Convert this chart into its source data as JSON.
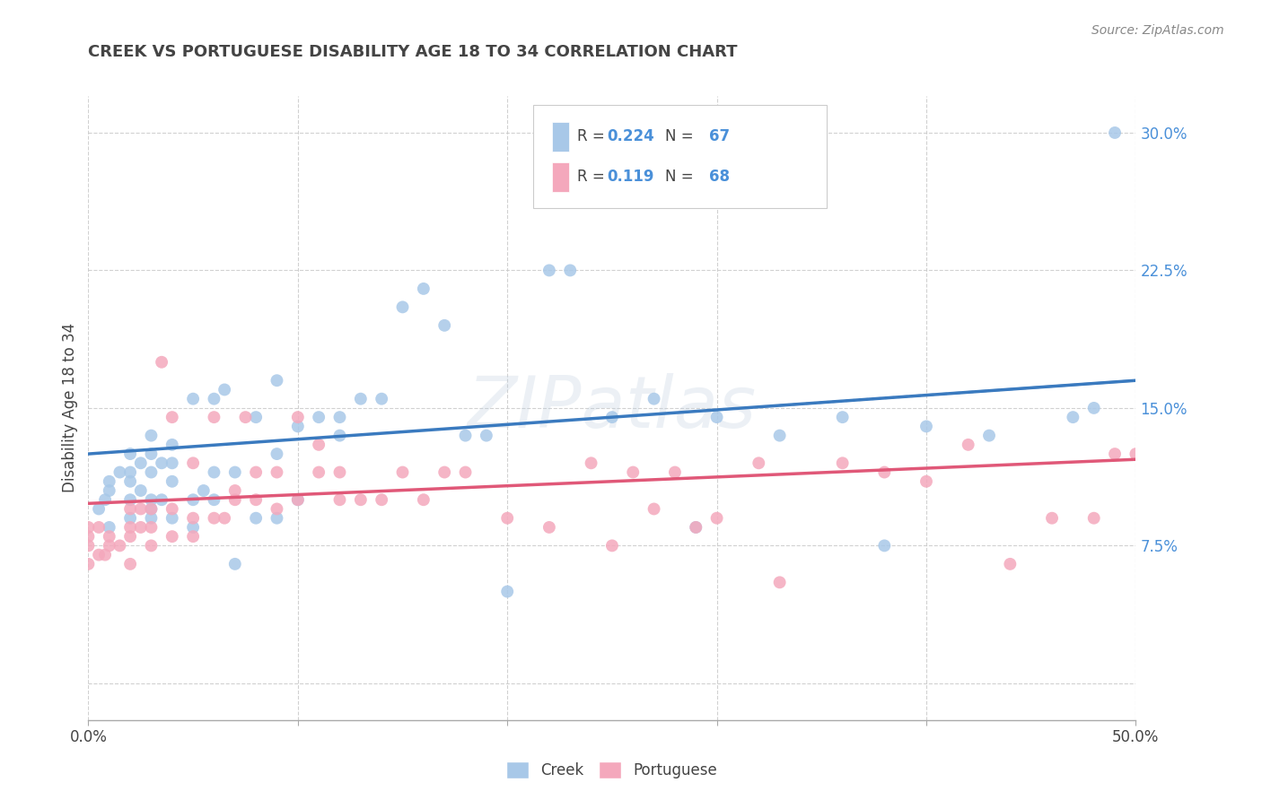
{
  "title": "CREEK VS PORTUGUESE DISABILITY AGE 18 TO 34 CORRELATION CHART",
  "source": "Source: ZipAtlas.com",
  "ylabel": "Disability Age 18 to 34",
  "xlim": [
    0.0,
    0.5
  ],
  "ylim": [
    -0.02,
    0.32
  ],
  "yticks": [
    0.0,
    0.075,
    0.15,
    0.225,
    0.3
  ],
  "ytick_labels": [
    "",
    "7.5%",
    "15.0%",
    "22.5%",
    "30.0%"
  ],
  "xticks": [
    0.0,
    0.1,
    0.2,
    0.3,
    0.4,
    0.5
  ],
  "xtick_labels": [
    "0.0%",
    "",
    "",
    "",
    "",
    "50.0%"
  ],
  "creek_R": 0.224,
  "creek_N": 67,
  "port_R": 0.119,
  "port_N": 68,
  "creek_color": "#a8c8e8",
  "port_color": "#f4a8bc",
  "creek_line_color": "#3a7abf",
  "port_line_color": "#e05878",
  "watermark": "ZIPatlas",
  "background_color": "#ffffff",
  "grid_color": "#cccccc",
  "legend_text_color": "#4a90d9",
  "title_color": "#444444",
  "ytick_color": "#4a90d9",
  "xtick_color": "#444444",
  "creek_x": [
    0.005,
    0.008,
    0.01,
    0.01,
    0.01,
    0.015,
    0.02,
    0.02,
    0.02,
    0.02,
    0.02,
    0.025,
    0.025,
    0.03,
    0.03,
    0.03,
    0.03,
    0.03,
    0.03,
    0.035,
    0.035,
    0.04,
    0.04,
    0.04,
    0.04,
    0.05,
    0.05,
    0.05,
    0.055,
    0.06,
    0.06,
    0.06,
    0.065,
    0.07,
    0.07,
    0.08,
    0.08,
    0.09,
    0.09,
    0.09,
    0.1,
    0.1,
    0.11,
    0.12,
    0.12,
    0.13,
    0.14,
    0.15,
    0.16,
    0.17,
    0.18,
    0.19,
    0.2,
    0.22,
    0.23,
    0.25,
    0.27,
    0.29,
    0.3,
    0.33,
    0.36,
    0.38,
    0.4,
    0.43,
    0.47,
    0.48,
    0.49
  ],
  "creek_y": [
    0.095,
    0.1,
    0.11,
    0.085,
    0.105,
    0.115,
    0.09,
    0.1,
    0.11,
    0.115,
    0.125,
    0.105,
    0.12,
    0.09,
    0.095,
    0.1,
    0.115,
    0.125,
    0.135,
    0.1,
    0.12,
    0.09,
    0.11,
    0.12,
    0.13,
    0.085,
    0.1,
    0.155,
    0.105,
    0.1,
    0.115,
    0.155,
    0.16,
    0.065,
    0.115,
    0.09,
    0.145,
    0.09,
    0.125,
    0.165,
    0.1,
    0.14,
    0.145,
    0.135,
    0.145,
    0.155,
    0.155,
    0.205,
    0.215,
    0.195,
    0.135,
    0.135,
    0.05,
    0.225,
    0.225,
    0.145,
    0.155,
    0.085,
    0.145,
    0.135,
    0.145,
    0.075,
    0.14,
    0.135,
    0.145,
    0.15,
    0.3
  ],
  "port_x": [
    0.0,
    0.0,
    0.0,
    0.0,
    0.005,
    0.005,
    0.008,
    0.01,
    0.01,
    0.015,
    0.02,
    0.02,
    0.02,
    0.02,
    0.025,
    0.025,
    0.03,
    0.03,
    0.03,
    0.035,
    0.04,
    0.04,
    0.04,
    0.05,
    0.05,
    0.05,
    0.06,
    0.06,
    0.065,
    0.07,
    0.07,
    0.075,
    0.08,
    0.08,
    0.09,
    0.09,
    0.1,
    0.1,
    0.11,
    0.11,
    0.12,
    0.12,
    0.13,
    0.14,
    0.15,
    0.16,
    0.17,
    0.18,
    0.2,
    0.22,
    0.24,
    0.25,
    0.26,
    0.27,
    0.28,
    0.29,
    0.3,
    0.32,
    0.33,
    0.36,
    0.38,
    0.4,
    0.42,
    0.44,
    0.46,
    0.48,
    0.49,
    0.5
  ],
  "port_y": [
    0.065,
    0.075,
    0.08,
    0.085,
    0.07,
    0.085,
    0.07,
    0.075,
    0.08,
    0.075,
    0.065,
    0.08,
    0.085,
    0.095,
    0.085,
    0.095,
    0.075,
    0.085,
    0.095,
    0.175,
    0.08,
    0.095,
    0.145,
    0.08,
    0.09,
    0.12,
    0.09,
    0.145,
    0.09,
    0.1,
    0.105,
    0.145,
    0.1,
    0.115,
    0.095,
    0.115,
    0.1,
    0.145,
    0.115,
    0.13,
    0.1,
    0.115,
    0.1,
    0.1,
    0.115,
    0.1,
    0.115,
    0.115,
    0.09,
    0.085,
    0.12,
    0.075,
    0.115,
    0.095,
    0.115,
    0.085,
    0.09,
    0.12,
    0.055,
    0.12,
    0.115,
    0.11,
    0.13,
    0.065,
    0.09,
    0.09,
    0.125,
    0.125
  ]
}
